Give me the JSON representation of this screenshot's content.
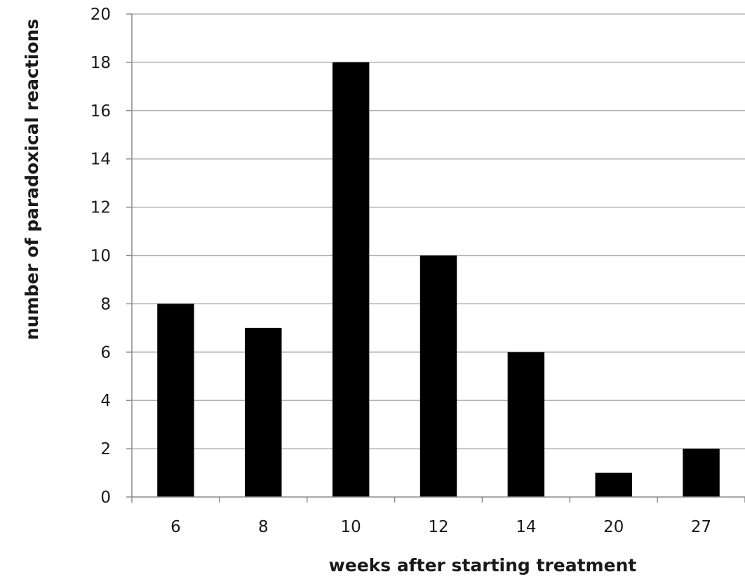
{
  "chart_data": {
    "type": "bar",
    "title": "",
    "xlabel": "weeks after starting treatment",
    "ylabel": "number of paradoxical reactions",
    "categories": [
      "6",
      "8",
      "10",
      "12",
      "14",
      "20",
      "27"
    ],
    "series": [
      {
        "values": [
          8,
          7,
          18,
          10,
          6,
          1,
          2
        ]
      }
    ],
    "ylim": [
      0,
      20
    ],
    "yticks": [
      0,
      2,
      4,
      6,
      8,
      10,
      12,
      14,
      16,
      18,
      20
    ],
    "grid": true,
    "legend": "none",
    "colors": {
      "bar": "#000000",
      "grid": "#b3b3b3",
      "axis": "#8c8c8c",
      "text": "#1a1a1a"
    }
  }
}
